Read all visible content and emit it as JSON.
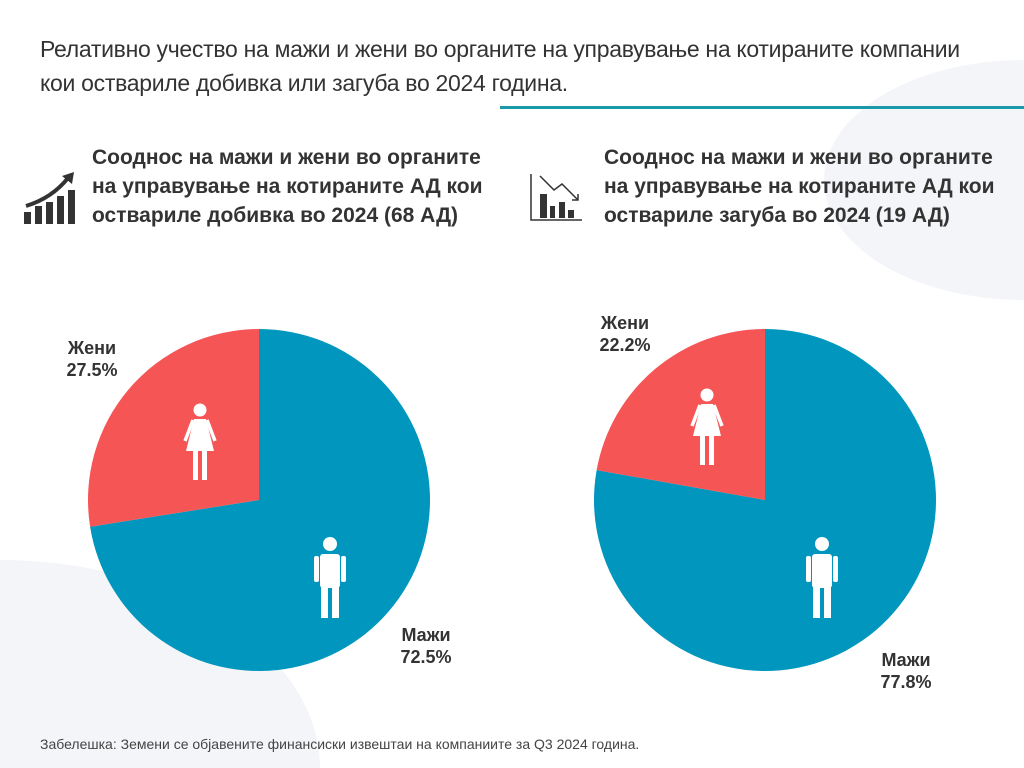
{
  "title": "Релативно учество на мажи и жени во органите на управување на котираните компании кои оствариле добивка или загуба во 2024 година.",
  "note": "Забелешка: Земени се објавените финансиски извештаи на компаниите за Q3 2024 година.",
  "colors": {
    "men": "#0096bd",
    "women": "#f65556",
    "accent": "#1a9aa8"
  },
  "chart_data": [
    {
      "type": "pie",
      "title": "Сооднос на мажи и жени во органите на управување на котираните АД кои оствариле добивка во 2024 (68 АД)",
      "icon": "chart-up-arrow-icon",
      "slices": [
        {
          "label": "Мажи",
          "value": 72.5,
          "value_label": "72.5%"
        },
        {
          "label": "Жени",
          "value": 27.5,
          "value_label": "27.5%"
        }
      ]
    },
    {
      "type": "pie",
      "title": "Сооднос на мажи и жени во органите на управување на котираните АД кои оствариле загуба во 2024 (19 АД)",
      "icon": "chart-down-arrow-icon",
      "slices": [
        {
          "label": "Мажи",
          "value": 77.8,
          "value_label": "77.8%"
        },
        {
          "label": "Жени",
          "value": 22.2,
          "value_label": "22.2%"
        }
      ]
    }
  ]
}
